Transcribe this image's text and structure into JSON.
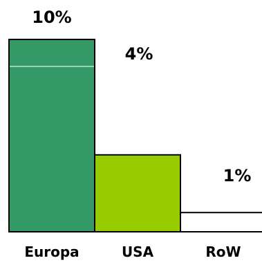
{
  "chart_data": {
    "type": "bar",
    "title": "",
    "xlabel": "",
    "ylabel": "",
    "categories": [
      "Europa",
      "USA",
      "RoW"
    ],
    "values": [
      10,
      4,
      1
    ],
    "value_labels": [
      "10%",
      "4%",
      "1%"
    ],
    "units": "%",
    "ylim": [
      0,
      10
    ],
    "grid": false,
    "legend": "none",
    "colors": [
      "#339966",
      "#99cc00",
      "#ffffff"
    ],
    "outline_color": "#000000"
  }
}
